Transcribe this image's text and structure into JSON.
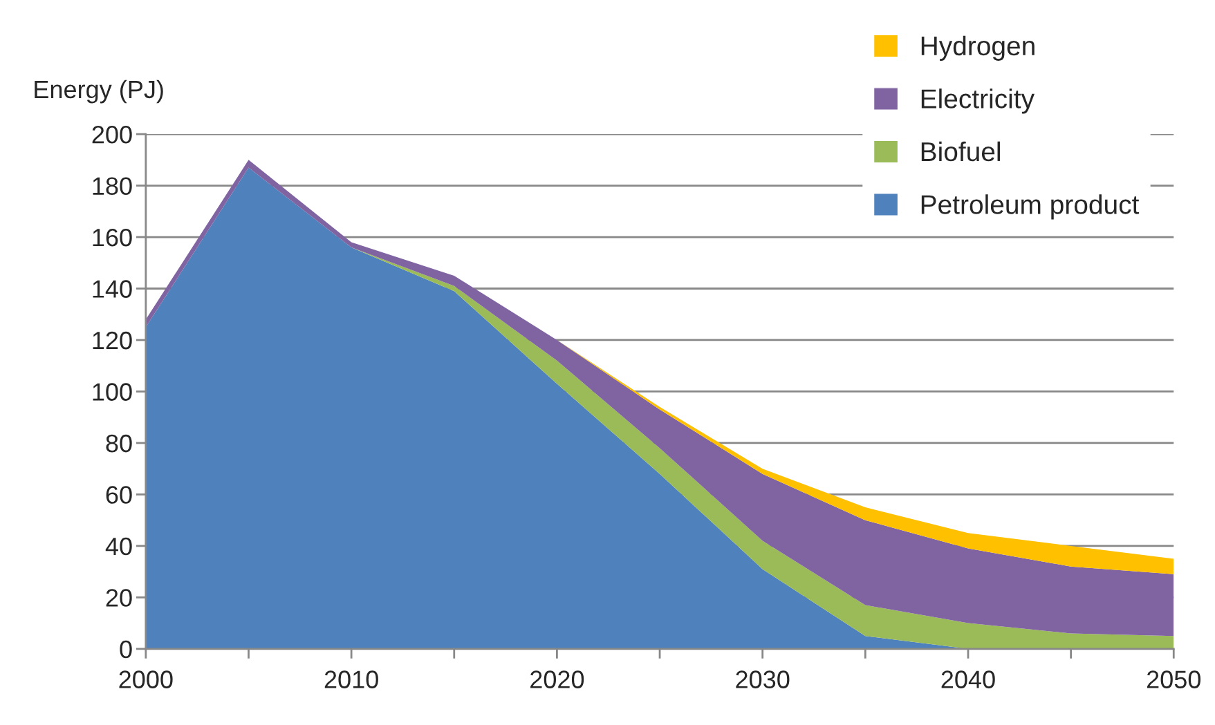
{
  "chart_data": {
    "type": "area",
    "stacked": true,
    "ylabel": "Energy (PJ)",
    "x": [
      2000,
      2005,
      2010,
      2015,
      2020,
      2025,
      2030,
      2035,
      2040,
      2045,
      2050
    ],
    "series": [
      {
        "name": "Petroleum product",
        "color": "#4f81bd",
        "values": [
          125,
          187,
          156,
          139,
          103,
          68,
          31,
          5,
          0,
          0,
          0
        ]
      },
      {
        "name": "Biofuel",
        "color": "#9bbb59",
        "values": [
          null,
          null,
          0,
          2,
          9,
          10,
          11,
          12,
          10,
          6,
          5
        ]
      },
      {
        "name": "Electricity",
        "color": "#8064a2",
        "values": [
          3,
          3,
          2,
          4,
          8,
          15,
          26,
          33,
          29,
          26,
          24
        ]
      },
      {
        "name": "Hydrogen",
        "color": "#ffc000",
        "values": [
          null,
          null,
          null,
          null,
          0,
          1,
          2,
          5,
          6,
          8,
          6
        ]
      }
    ],
    "xlim": [
      2000,
      2050
    ],
    "xticks": [
      2000,
      {
        "value": 2005,
        "label": null
      },
      2010,
      {
        "value": 2015,
        "label": null
      },
      2020,
      {
        "value": 2025,
        "label": null
      },
      2030,
      {
        "value": 2035,
        "label": null
      },
      2040,
      {
        "value": 2045,
        "label": null
      },
      2050
    ],
    "ylim": [
      0,
      200
    ],
    "yticks": [
      0,
      20,
      40,
      60,
      80,
      100,
      120,
      140,
      160,
      180,
      200
    ],
    "grid": "y",
    "legend": "top right"
  }
}
